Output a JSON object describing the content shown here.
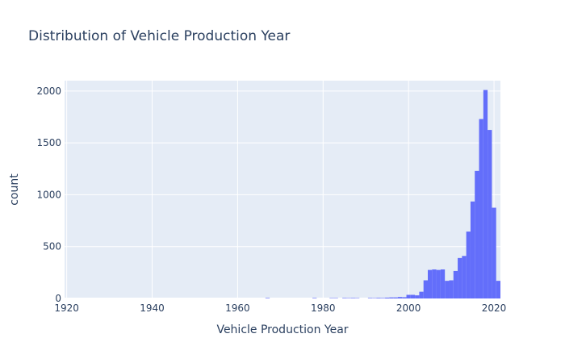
{
  "chart_data": {
    "type": "bar",
    "title": "Distribution of Vehicle Production Year",
    "xlabel": "Vehicle Production Year",
    "ylabel": "count",
    "xlim": [
      1919.5,
      2021.5
    ],
    "ylim": [
      0,
      2100
    ],
    "x_ticks": [
      1920,
      1940,
      1960,
      1980,
      2000,
      2020
    ],
    "y_ticks": [
      0,
      500,
      1000,
      1500,
      2000
    ],
    "grid": true,
    "legend": "none",
    "bin_width": 1,
    "bar_color": "#636efa",
    "plot_background": "#e5ecf6",
    "series": [
      {
        "x": [
          1967,
          1978,
          1982,
          1983,
          1985,
          1986,
          1987,
          1988,
          1991,
          1992,
          1993,
          1994,
          1995,
          1996,
          1997,
          1998,
          1999,
          2000,
          2001,
          2002,
          2003,
          2004,
          2005,
          2006,
          2007,
          2008,
          2009,
          2010,
          2011,
          2012,
          2013,
          2014,
          2015,
          2016,
          2017,
          2018,
          2019,
          2020,
          2021
        ],
        "values": [
          5,
          5,
          4,
          4,
          5,
          4,
          5,
          4,
          5,
          4,
          6,
          5,
          8,
          10,
          10,
          14,
          12,
          35,
          35,
          30,
          65,
          175,
          275,
          280,
          275,
          280,
          170,
          175,
          265,
          390,
          410,
          645,
          935,
          1230,
          1730,
          2010,
          1625,
          875,
          170
        ]
      }
    ]
  }
}
